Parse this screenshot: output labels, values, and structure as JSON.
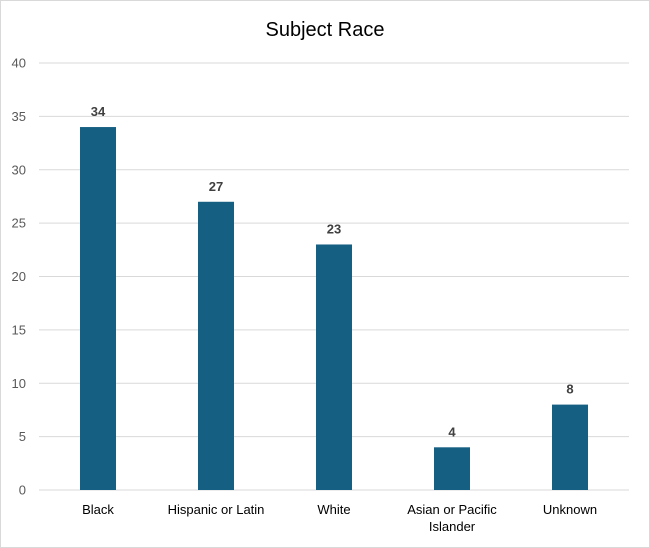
{
  "chart_data": {
    "type": "bar",
    "title": "Subject Race",
    "xlabel": "",
    "ylabel": "",
    "categories": [
      [
        "Black"
      ],
      [
        "Hispanic or Latin"
      ],
      [
        "White"
      ],
      [
        "Asian or Pacific",
        "Islander"
      ],
      [
        "Unknown"
      ]
    ],
    "values": [
      34,
      27,
      23,
      4,
      8
    ],
    "ylim": [
      0,
      40
    ],
    "yticks": [
      "0",
      "5",
      "10",
      "15",
      "20",
      "25",
      "30",
      "35",
      "40"
    ],
    "grid": true,
    "legend": "none",
    "data_labels": true,
    "colors": {
      "bar": "#155f82",
      "grid": "#d9d9d9"
    }
  }
}
